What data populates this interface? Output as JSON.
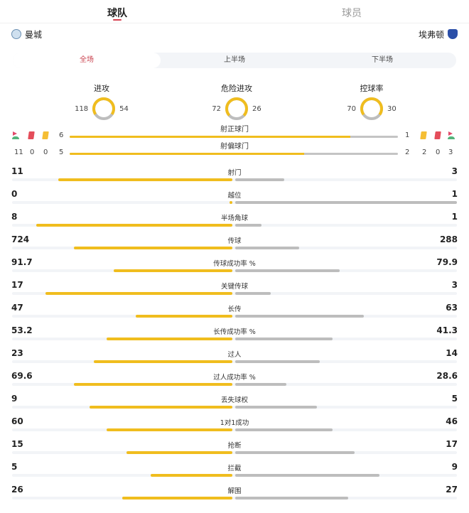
{
  "tabs": [
    {
      "label": "球队",
      "active": true
    },
    {
      "label": "球员",
      "active": false
    }
  ],
  "teams": {
    "home": "曼城",
    "away": "埃弗顿"
  },
  "periods": [
    {
      "label": "全场",
      "active": true
    },
    {
      "label": "上半场"
    },
    {
      "label": "下半场"
    }
  ],
  "colors": {
    "home": "#f0bd1e",
    "away": "#bdbdbd",
    "accent": "#d6404f"
  },
  "donuts": [
    {
      "title": "进攻",
      "home": "118",
      "away": "54",
      "home_value": 118,
      "away_value": 54
    },
    {
      "title": "危险进攻",
      "home": "72",
      "away": "26",
      "home_value": 72,
      "away_value": 26
    },
    {
      "title": "控球率",
      "home": "70",
      "away": "30",
      "home_value": 70,
      "away_value": 30
    }
  ],
  "cards": {
    "home": {
      "corners": "11",
      "red": "0",
      "yellow": "0"
    },
    "away": {
      "yellow": "2",
      "red": "0",
      "corners": "3"
    }
  },
  "shot_bars": [
    {
      "label": "射正球门",
      "home": "6",
      "away": "1",
      "home_fraction": 0.855
    },
    {
      "label": "射偏球门",
      "home": "5",
      "away": "2",
      "home_fraction": 0.714
    }
  ],
  "stats": [
    {
      "name": "射门",
      "home": "11",
      "away": "3",
      "home_fill": 0.79,
      "away_fill": 0.22
    },
    {
      "name": "越位",
      "home": "0",
      "away": "1",
      "home_fill": 0.01,
      "away_fill": 1.0
    },
    {
      "name": "半场角球",
      "home": "8",
      "away": "1",
      "home_fill": 0.89,
      "away_fill": 0.12
    },
    {
      "name": "传球",
      "home": "724",
      "away": "288",
      "home_fill": 0.72,
      "away_fill": 0.29
    },
    {
      "name": "传球成功率 %",
      "home": "91.7",
      "away": "79.9",
      "home_fill": 0.54,
      "away_fill": 0.47
    },
    {
      "name": "关键传球",
      "home": "17",
      "away": "3",
      "home_fill": 0.85,
      "away_fill": 0.16
    },
    {
      "name": "长传",
      "home": "47",
      "away": "63",
      "home_fill": 0.44,
      "away_fill": 0.58
    },
    {
      "name": "长传成功率 %",
      "home": "53.2",
      "away": "41.3",
      "home_fill": 0.57,
      "away_fill": 0.44
    },
    {
      "name": "过人",
      "home": "23",
      "away": "14",
      "home_fill": 0.63,
      "away_fill": 0.38
    },
    {
      "name": "过人成功率 %",
      "home": "69.6",
      "away": "28.6",
      "home_fill": 0.72,
      "away_fill": 0.23
    },
    {
      "name": "丢失球权",
      "home": "9",
      "away": "5",
      "home_fill": 0.65,
      "away_fill": 0.37
    },
    {
      "name": "1对1成功",
      "home": "60",
      "away": "46",
      "home_fill": 0.57,
      "away_fill": 0.44
    },
    {
      "name": "抢断",
      "home": "15",
      "away": "17",
      "home_fill": 0.48,
      "away_fill": 0.54
    },
    {
      "name": "拦截",
      "home": "5",
      "away": "9",
      "home_fill": 0.37,
      "away_fill": 0.65
    },
    {
      "name": "解围",
      "home": "26",
      "away": "27",
      "home_fill": 0.5,
      "away_fill": 0.51
    }
  ]
}
